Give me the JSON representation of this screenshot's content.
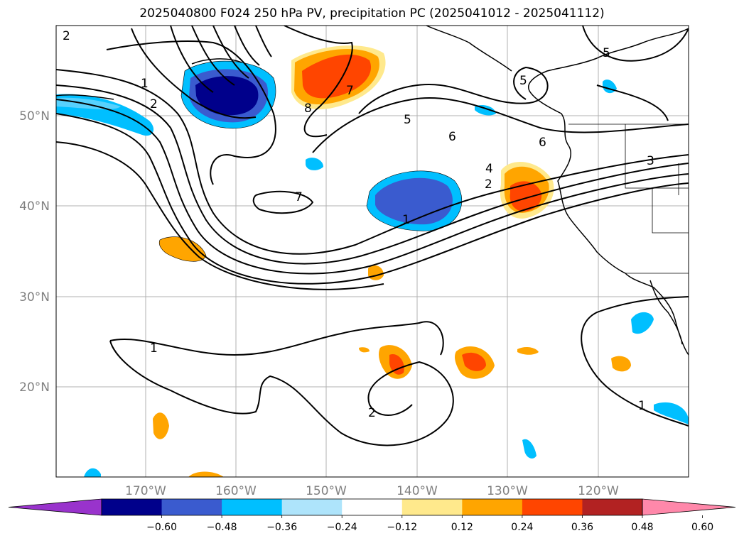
{
  "title": "2025040800 F024 250 hPa PV, precipitation PC (2025041012 - 2025041112)",
  "lat_labels": [
    "50°N",
    "40°N",
    "30°N",
    "20°N"
  ],
  "lon_labels": [
    "170°W",
    "160°W",
    "150°W",
    "140°W",
    "130°W",
    "120°W"
  ],
  "contour_labels": [
    "2",
    "1",
    "2",
    "8",
    "7",
    "5",
    "6",
    "6",
    "5",
    "5",
    "4",
    "3",
    "2",
    "1",
    "7",
    "1",
    "2",
    "1"
  ],
  "colorbar": {
    "ticks": [
      "−0.60",
      "−0.48",
      "−0.36",
      "−0.24",
      "−0.12",
      "0.12",
      "0.24",
      "0.36",
      "0.48",
      "0.60"
    ],
    "colors": [
      "#9933cc",
      "#00008b",
      "#3a5bcf",
      "#00bfff",
      "#aee4fb",
      "#ffffff",
      "#ffe98c",
      "#ffa500",
      "#ff4500",
      "#b22222",
      "#ff88aa"
    ]
  }
}
